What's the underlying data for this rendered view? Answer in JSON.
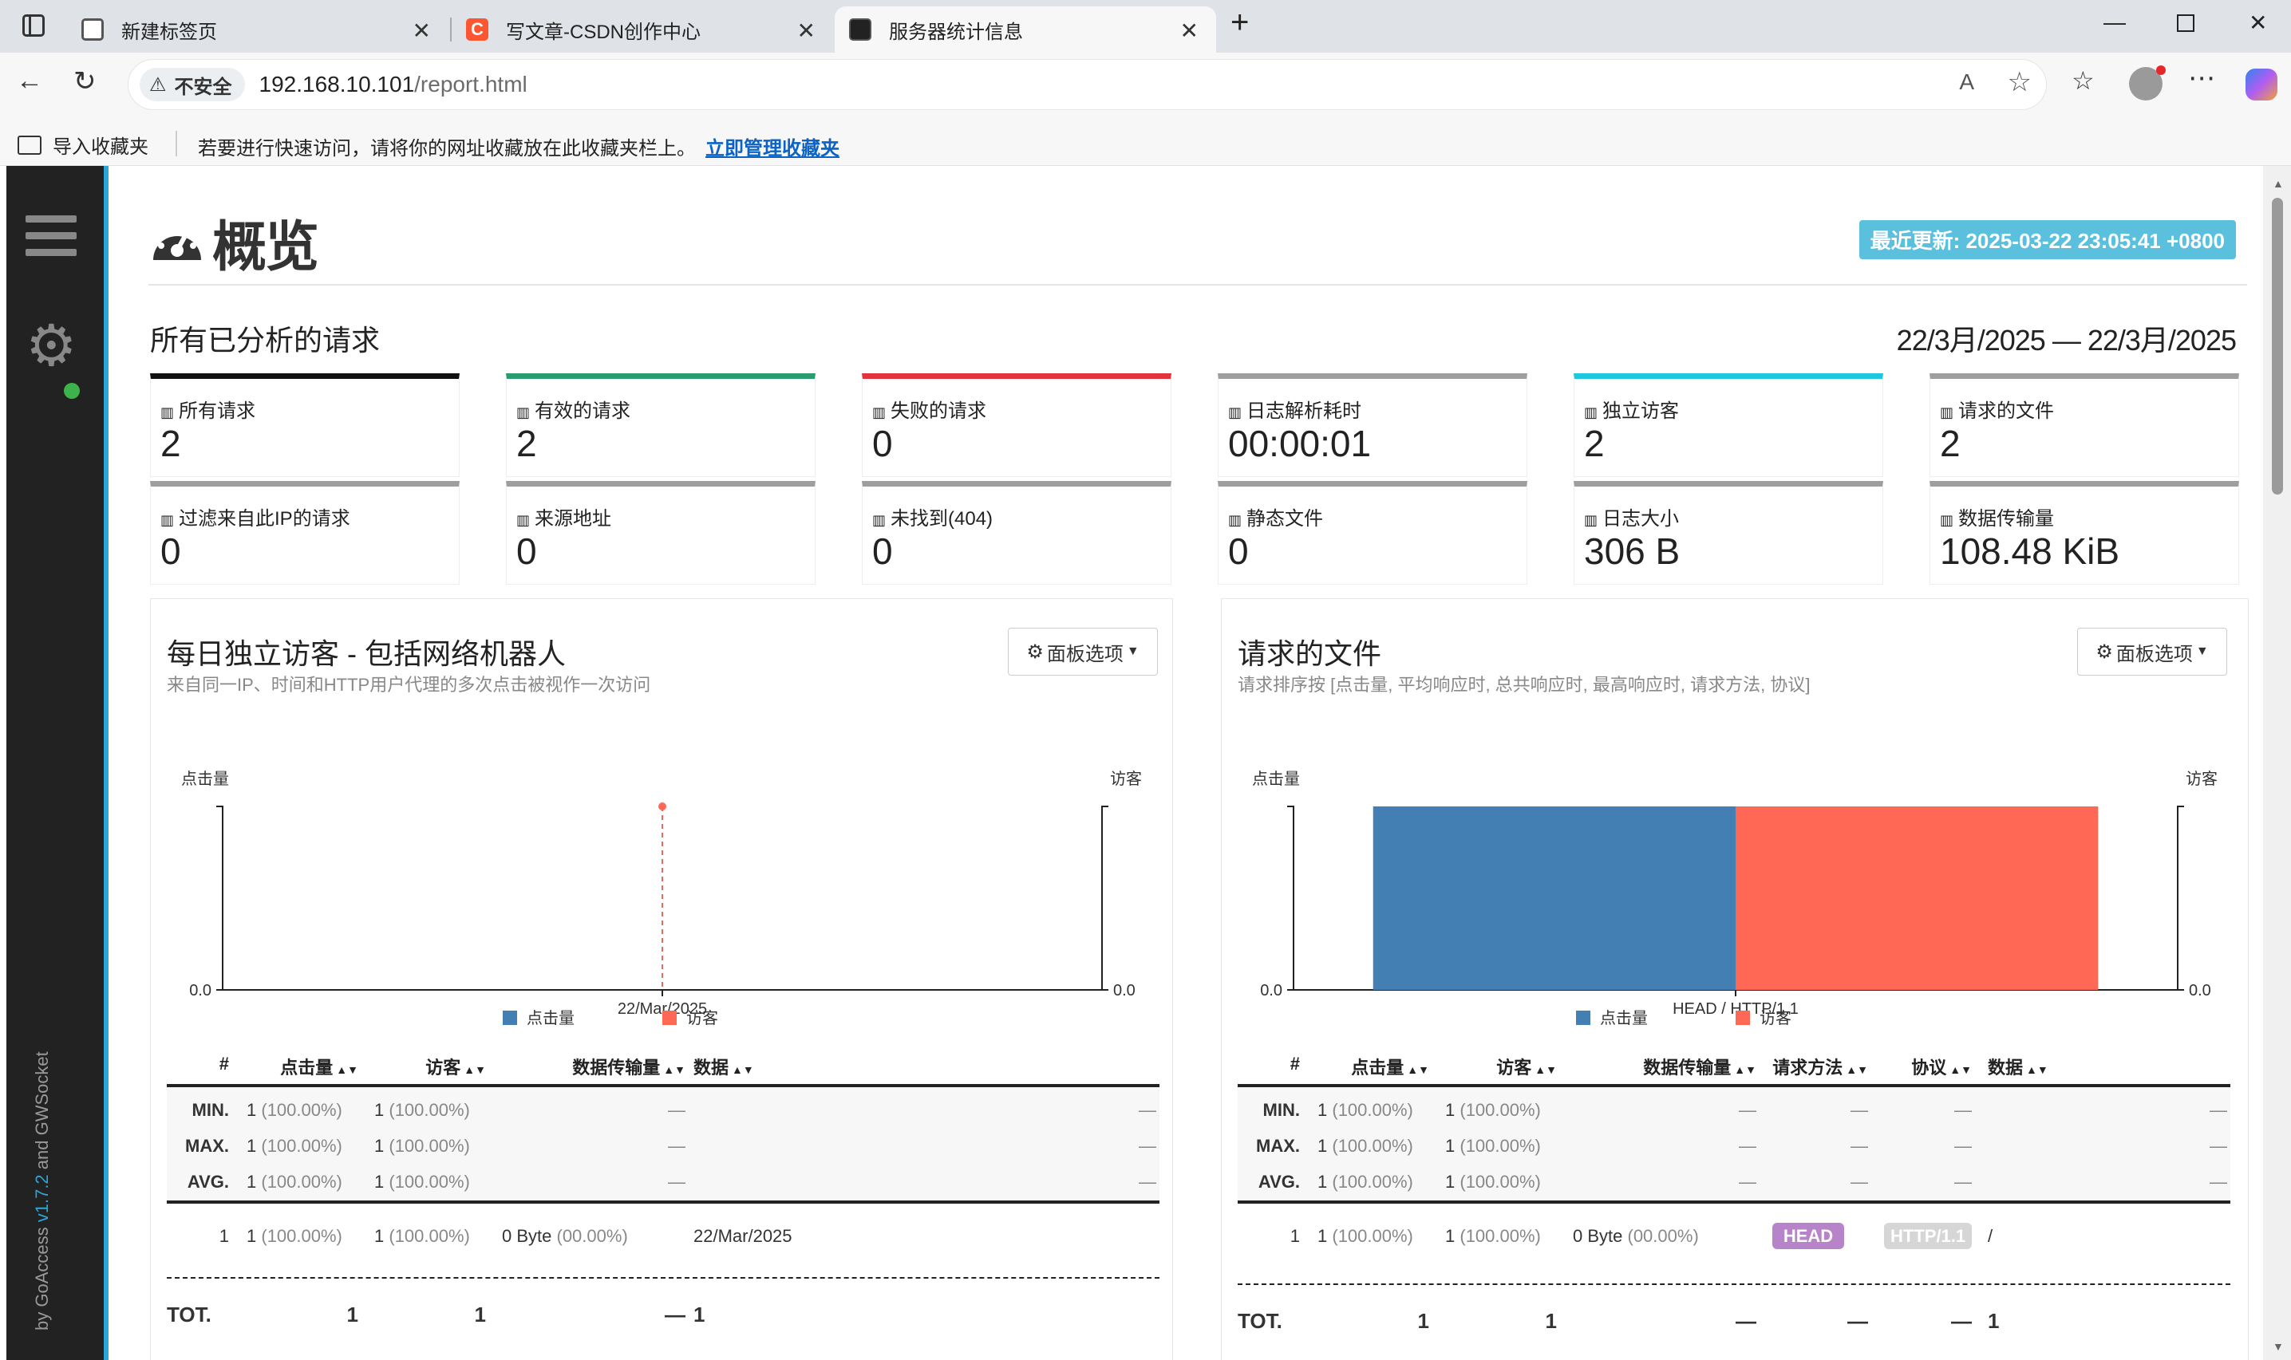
{
  "browser": {
    "tabs": [
      {
        "label": "新建标签页"
      },
      {
        "label": "写文章-CSDN创作中心"
      },
      {
        "label": "服务器统计信息"
      }
    ],
    "address": {
      "security": "不安全",
      "host": "192.168.10.101",
      "path": "/report.html"
    },
    "favorites_bar": {
      "import": "导入收藏夹",
      "hint": "若要进行快速访问，请将你的网址收藏放在此收藏夹栏上。",
      "manage_link": "立即管理收藏夹"
    }
  },
  "sidebar": {
    "footer_by": "by GoAccess",
    "footer_version": "v1.7.2",
    "footer_and": "and GWSocket"
  },
  "overview": {
    "title": "概览",
    "last_updated": "最近更新: 2025-03-22 23:05:41 +0800",
    "section_title": "所有已分析的请求",
    "date_range": "22/3月/2025 — 22/3月/2025",
    "cards": [
      {
        "label": "所有请求",
        "value": "2",
        "color": "#111111"
      },
      {
        "label": "有效的请求",
        "value": "2",
        "color": "#2a9d6e"
      },
      {
        "label": "失败的请求",
        "value": "0",
        "color": "#e0333c"
      },
      {
        "label": "日志解析耗时",
        "value": "00:00:01",
        "color": "#9e9e9e"
      },
      {
        "label": "独立访客",
        "value": "2",
        "color": "#1ec6e0"
      },
      {
        "label": "请求的文件",
        "value": "2",
        "color": "#9e9e9e"
      },
      {
        "label": "过滤来自此IP的请求",
        "value": "0",
        "color": "#9e9e9e"
      },
      {
        "label": "来源地址",
        "value": "0",
        "color": "#9e9e9e"
      },
      {
        "label": "未找到(404)",
        "value": "0",
        "color": "#9e9e9e"
      },
      {
        "label": "静态文件",
        "value": "0",
        "color": "#9e9e9e"
      },
      {
        "label": "日志大小",
        "value": "306 B",
        "color": "#9e9e9e"
      },
      {
        "label": "数据传输量",
        "value": "108.48 KiB",
        "color": "#9e9e9e"
      }
    ]
  },
  "panels": [
    {
      "title": "每日独立访客 - 包括网络机器人",
      "subtitle": "来自同一IP、时间和HTTP用户代理的多次点击被视作一次访问",
      "options_label": "面板选项",
      "headers": [
        "#",
        "点击量",
        "访客",
        "数据传输量",
        "数据"
      ],
      "rows": [
        {
          "label": "MIN.",
          "hits": "1",
          "hits_pct": "(100.00%)",
          "visitors": "1",
          "visitors_pct": "(100.00%)",
          "bw": "—",
          "data": "—"
        },
        {
          "label": "MAX.",
          "hits": "1",
          "hits_pct": "(100.00%)",
          "visitors": "1",
          "visitors_pct": "(100.00%)",
          "bw": "—",
          "data": "—"
        },
        {
          "label": "AVG.",
          "hits": "1",
          "hits_pct": "(100.00%)",
          "visitors": "1",
          "visitors_pct": "(100.00%)",
          "bw": "—",
          "data": "—"
        }
      ],
      "data_row": {
        "idx": "1",
        "hits": "1",
        "hits_pct": "(100.00%)",
        "visitors": "1",
        "visitors_pct": "(100.00%)",
        "bw": "0 Byte",
        "bw_pct": "(00.00%)",
        "data": "22/Mar/2025"
      },
      "total": {
        "label": "TOT.",
        "hits": "1",
        "visitors": "1",
        "bw": "—",
        "data": "1"
      }
    },
    {
      "title": "请求的文件",
      "subtitle": "请求排序按 [点击量, 平均响应时, 总共响应时, 最高响应时, 请求方法, 协议]",
      "options_label": "面板选项",
      "headers": [
        "#",
        "点击量",
        "访客",
        "数据传输量",
        "请求方法",
        "协议",
        "数据"
      ],
      "rows": [
        {
          "label": "MIN.",
          "hits": "1",
          "hits_pct": "(100.00%)",
          "visitors": "1",
          "visitors_pct": "(100.00%)",
          "bw": "—",
          "method": "—",
          "proto": "—",
          "data": "—"
        },
        {
          "label": "MAX.",
          "hits": "1",
          "hits_pct": "(100.00%)",
          "visitors": "1",
          "visitors_pct": "(100.00%)",
          "bw": "—",
          "method": "—",
          "proto": "—",
          "data": "—"
        },
        {
          "label": "AVG.",
          "hits": "1",
          "hits_pct": "(100.00%)",
          "visitors": "1",
          "visitors_pct": "(100.00%)",
          "bw": "—",
          "method": "—",
          "proto": "—",
          "data": "—"
        }
      ],
      "data_row": {
        "idx": "1",
        "hits": "1",
        "hits_pct": "(100.00%)",
        "visitors": "1",
        "visitors_pct": "(100.00%)",
        "bw": "0 Byte",
        "bw_pct": "(00.00%)",
        "method": "HEAD",
        "proto": "HTTP/1.1",
        "data": "/"
      },
      "total": {
        "label": "TOT.",
        "hits": "1",
        "visitors": "1",
        "bw": "—",
        "method": "—",
        "proto": "—",
        "data": "1"
      }
    }
  ],
  "chart_data": [
    {
      "type": "line",
      "categories": [
        "22/Mar/2025"
      ],
      "series": [
        {
          "name": "点击量",
          "values": [
            1
          ],
          "color": "#447fb4"
        },
        {
          "name": "访客",
          "values": [
            1
          ],
          "color": "#ff6854"
        }
      ],
      "ylabel_left": "点击量",
      "ylabel_right": "访客",
      "yticks": [
        "0.0"
      ]
    },
    {
      "type": "bar",
      "categories": [
        "HEAD / HTTP/1.1"
      ],
      "series": [
        {
          "name": "点击量",
          "values": [
            1
          ],
          "color": "#447fb4"
        },
        {
          "name": "访客",
          "values": [
            1
          ],
          "color": "#ff6854"
        }
      ],
      "ylabel_left": "点击量",
      "ylabel_right": "访客",
      "yticks": [
        "0.0"
      ]
    }
  ],
  "colors": {
    "accent": "#2ca6d6",
    "badge_head": "#b783c9",
    "badge_proto": "#d6d6d6",
    "sidebar": "#222222"
  }
}
